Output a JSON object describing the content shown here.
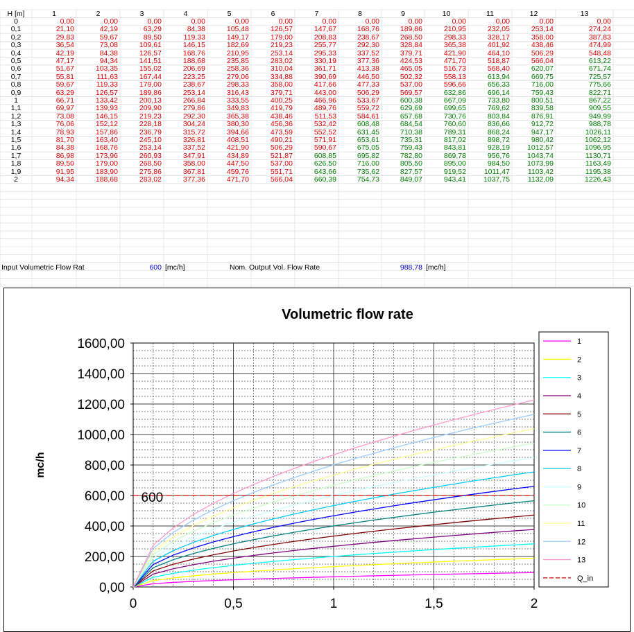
{
  "table": {
    "header_label": "H [m]",
    "columns": [
      "1",
      "2",
      "3",
      "4",
      "5",
      "6",
      "7",
      "8",
      "9",
      "10",
      "11",
      "12",
      "13"
    ],
    "rows": [
      {
        "h": "0",
        "values": [
          "0,00",
          "0,00",
          "0,00",
          "0,00",
          "0,00",
          "0,00",
          "0,00",
          "0,00",
          "0,00",
          "0,00",
          "0,00",
          "0,00",
          "0,00"
        ]
      },
      {
        "h": "0,1",
        "values": [
          "21,10",
          "42,19",
          "63,29",
          "84,38",
          "105,48",
          "126,57",
          "147,67",
          "168,76",
          "189,86",
          "210,95",
          "232,05",
          "253,14",
          "274,24"
        ]
      },
      {
        "h": "0,2",
        "values": [
          "29,83",
          "59,67",
          "89,50",
          "119,33",
          "149,17",
          "179,00",
          "208,83",
          "238,67",
          "268,50",
          "298,33",
          "328,17",
          "358,00",
          "387,83"
        ]
      },
      {
        "h": "0,3",
        "values": [
          "36,54",
          "73,08",
          "109,61",
          "146,15",
          "182,69",
          "219,23",
          "255,77",
          "292,30",
          "328,84",
          "365,38",
          "401,92",
          "438,46",
          "474,99"
        ]
      },
      {
        "h": "0,4",
        "values": [
          "42,19",
          "84,38",
          "126,57",
          "168,76",
          "210,95",
          "253,14",
          "295,33",
          "337,52",
          "379,71",
          "421,90",
          "464,10",
          "506,29",
          "548,48"
        ]
      },
      {
        "h": "0,5",
        "values": [
          "47,17",
          "94,34",
          "141,51",
          "188,68",
          "235,85",
          "283,02",
          "330,19",
          "377,36",
          "424,53",
          "471,70",
          "518,87",
          "566,04",
          "613,22"
        ]
      },
      {
        "h": "0,6",
        "values": [
          "51,67",
          "103,35",
          "155,02",
          "206,69",
          "258,36",
          "310,04",
          "361,71",
          "413,38",
          "465,05",
          "516,73",
          "568,40",
          "620,07",
          "671,74"
        ]
      },
      {
        "h": "0,7",
        "values": [
          "55,81",
          "111,63",
          "167,44",
          "223,25",
          "279,06",
          "334,88",
          "390,69",
          "446,50",
          "502,32",
          "558,13",
          "613,94",
          "669,75",
          "725,57"
        ]
      },
      {
        "h": "0,8",
        "values": [
          "59,67",
          "119,33",
          "179,00",
          "238,67",
          "298,33",
          "358,00",
          "417,66",
          "477,33",
          "537,00",
          "596,66",
          "656,33",
          "716,00",
          "775,66"
        ]
      },
      {
        "h": "0,9",
        "values": [
          "63,29",
          "126,57",
          "189,86",
          "253,14",
          "316,43",
          "379,71",
          "443,00",
          "506,29",
          "569,57",
          "632,86",
          "696,14",
          "759,43",
          "822,71"
        ]
      },
      {
        "h": "1",
        "values": [
          "66,71",
          "133,42",
          "200,13",
          "266,84",
          "333,55",
          "400,25",
          "466,96",
          "533,67",
          "600,38",
          "667,09",
          "733,80",
          "800,51",
          "867,22"
        ]
      },
      {
        "h": "1,1",
        "values": [
          "69,97",
          "139,93",
          "209,90",
          "279,86",
          "349,83",
          "419,79",
          "489,76",
          "559,72",
          "629,69",
          "699,65",
          "769,62",
          "839,58",
          "909,55"
        ]
      },
      {
        "h": "1,2",
        "values": [
          "73,08",
          "146,15",
          "219,23",
          "292,30",
          "365,38",
          "438,46",
          "511,53",
          "584,61",
          "657,68",
          "730,76",
          "803,84",
          "876,91",
          "949,99"
        ]
      },
      {
        "h": "1,3",
        "values": [
          "76,06",
          "152,12",
          "228,18",
          "304,24",
          "380,30",
          "456,36",
          "532,42",
          "608,48",
          "684,54",
          "760,60",
          "836,66",
          "912,72",
          "988,78"
        ]
      },
      {
        "h": "1,4",
        "values": [
          "78,93",
          "157,86",
          "236,79",
          "315,72",
          "394,66",
          "473,59",
          "552,52",
          "631,45",
          "710,38",
          "789,31",
          "868,24",
          "947,17",
          "1026,11"
        ]
      },
      {
        "h": "1,5",
        "values": [
          "81,70",
          "163,40",
          "245,10",
          "326,81",
          "408,51",
          "490,21",
          "571,91",
          "653,61",
          "735,31",
          "817,02",
          "898,72",
          "980,42",
          "1062,12"
        ]
      },
      {
        "h": "1,6",
        "values": [
          "84,38",
          "168,76",
          "253,14",
          "337,52",
          "421,90",
          "506,29",
          "590,67",
          "675,05",
          "759,43",
          "843,81",
          "928,19",
          "1012,57",
          "1096,95"
        ]
      },
      {
        "h": "1,7",
        "values": [
          "86,98",
          "173,96",
          "260,93",
          "347,91",
          "434,89",
          "521,87",
          "608,85",
          "695,82",
          "782,80",
          "869,78",
          "956,76",
          "1043,74",
          "1130,71"
        ]
      },
      {
        "h": "1,8",
        "values": [
          "89,50",
          "179,00",
          "268,50",
          "358,00",
          "447,50",
          "537,00",
          "626,50",
          "716,00",
          "805,50",
          "895,00",
          "984,50",
          "1073,99",
          "1163,49"
        ]
      },
      {
        "h": "1,9",
        "values": [
          "91,95",
          "183,90",
          "275,86",
          "367,81",
          "459,76",
          "551,71",
          "643,66",
          "735,62",
          "827,57",
          "919,52",
          "1011,47",
          "1103,42",
          "1195,38"
        ]
      },
      {
        "h": "2",
        "values": [
          "94,34",
          "188,68",
          "283,02",
          "377,36",
          "471,70",
          "566,04",
          "660,39",
          "754,73",
          "849,07",
          "943,41",
          "1037,75",
          "1132,09",
          "1226,43"
        ]
      }
    ]
  },
  "inputs": {
    "input_label": "Input Volumetric Flow Rat",
    "input_value": "600",
    "input_unit": "[mc/h]",
    "output_label": "Nom. Output Vol. Flow Rate",
    "output_value": "988,78",
    "output_unit": "[mc/h]"
  },
  "colors": {
    "red_text": "#e00000",
    "green_text": "#008000",
    "blue_text": "#0000e0"
  },
  "chart_data": {
    "type": "line",
    "title": "Volumetric flow rate",
    "xlabel": "",
    "ylabel": "mc/h",
    "xlim": [
      0,
      2
    ],
    "ylim": [
      0,
      1600
    ],
    "x_ticks": [
      "0",
      "0,5",
      "1",
      "1,5",
      "2"
    ],
    "y_ticks": [
      "0,00",
      "200,00",
      "400,00",
      "600,00",
      "800,00",
      "1000,00",
      "1200,00",
      "1400,00",
      "1600,00"
    ],
    "grid": true,
    "legend": "right",
    "annotation": "600",
    "q_in": 600,
    "x": [
      0,
      0.1,
      0.2,
      0.3,
      0.4,
      0.5,
      0.6,
      0.7,
      0.8,
      0.9,
      1,
      1.1,
      1.2,
      1.3,
      1.4,
      1.5,
      1.6,
      1.7,
      1.8,
      1.9,
      2
    ],
    "series": [
      {
        "name": "1",
        "color": "#ff00ff",
        "values": [
          0,
          21.1,
          29.83,
          36.54,
          42.19,
          47.17,
          51.67,
          55.81,
          59.67,
          63.29,
          66.71,
          69.97,
          73.08,
          76.06,
          78.93,
          81.7,
          84.38,
          86.98,
          89.5,
          91.95,
          94.34
        ]
      },
      {
        "name": "2",
        "color": "#ffff00",
        "values": [
          0,
          42.19,
          59.67,
          73.08,
          84.38,
          94.34,
          103.35,
          111.63,
          119.33,
          126.57,
          133.42,
          139.93,
          146.15,
          152.12,
          157.86,
          163.4,
          168.76,
          173.96,
          179.0,
          183.9,
          188.68
        ]
      },
      {
        "name": "3",
        "color": "#00ffff",
        "values": [
          0,
          63.29,
          89.5,
          109.61,
          126.57,
          141.51,
          155.02,
          167.44,
          179.0,
          189.86,
          200.13,
          209.9,
          219.23,
          228.18,
          236.79,
          245.1,
          253.14,
          260.93,
          268.5,
          275.86,
          283.02
        ]
      },
      {
        "name": "4",
        "color": "#800080",
        "values": [
          0,
          84.38,
          119.33,
          146.15,
          168.76,
          188.68,
          206.69,
          223.25,
          238.67,
          253.14,
          266.84,
          279.86,
          292.3,
          304.24,
          315.72,
          326.81,
          337.52,
          347.91,
          358.0,
          367.81,
          377.36
        ]
      },
      {
        "name": "5",
        "color": "#800000",
        "values": [
          0,
          105.48,
          149.17,
          182.69,
          210.95,
          235.85,
          258.36,
          279.06,
          298.33,
          316.43,
          333.55,
          349.83,
          365.38,
          380.3,
          394.66,
          408.51,
          421.9,
          434.89,
          447.5,
          459.76,
          471.7
        ]
      },
      {
        "name": "6",
        "color": "#008080",
        "values": [
          0,
          126.57,
          179.0,
          219.23,
          253.14,
          283.02,
          310.04,
          334.88,
          358.0,
          379.71,
          400.25,
          419.79,
          438.46,
          456.36,
          473.59,
          490.21,
          506.29,
          521.87,
          537.0,
          551.71,
          566.04
        ]
      },
      {
        "name": "7",
        "color": "#0000ff",
        "values": [
          0,
          147.67,
          208.83,
          255.77,
          295.33,
          330.19,
          361.71,
          390.69,
          417.66,
          443.0,
          466.96,
          489.76,
          511.53,
          532.42,
          552.52,
          571.91,
          590.67,
          608.85,
          626.5,
          643.66,
          660.39
        ]
      },
      {
        "name": "8",
        "color": "#00ccff",
        "values": [
          0,
          168.76,
          238.67,
          292.3,
          337.52,
          377.36,
          413.38,
          446.5,
          477.33,
          506.29,
          533.67,
          559.72,
          584.61,
          608.48,
          631.45,
          653.61,
          675.05,
          695.82,
          716.0,
          735.62,
          754.73
        ]
      },
      {
        "name": "9",
        "color": "#ccffff",
        "values": [
          0,
          189.86,
          268.5,
          328.84,
          379.71,
          424.53,
          465.05,
          502.32,
          537.0,
          569.57,
          600.38,
          629.69,
          657.68,
          684.54,
          710.38,
          735.31,
          759.43,
          782.8,
          805.5,
          827.57,
          849.07
        ]
      },
      {
        "name": "10",
        "color": "#ccffcc",
        "values": [
          0,
          210.95,
          298.33,
          365.38,
          421.9,
          471.7,
          516.73,
          558.13,
          596.66,
          632.86,
          667.09,
          699.65,
          730.76,
          760.6,
          789.31,
          817.02,
          843.81,
          869.78,
          895.0,
          919.52,
          943.41
        ]
      },
      {
        "name": "11",
        "color": "#ffff99",
        "values": [
          0,
          232.05,
          328.17,
          401.92,
          464.1,
          518.87,
          568.4,
          613.94,
          656.33,
          696.14,
          733.8,
          769.62,
          803.84,
          836.66,
          868.24,
          898.72,
          928.19,
          956.76,
          984.5,
          1011.47,
          1037.75
        ]
      },
      {
        "name": "12",
        "color": "#99ccff",
        "values": [
          0,
          253.14,
          358.0,
          438.46,
          506.29,
          566.04,
          620.07,
          669.75,
          716.0,
          759.43,
          800.51,
          839.58,
          876.91,
          912.72,
          947.17,
          980.42,
          1012.57,
          1043.74,
          1073.99,
          1103.42,
          1132.09
        ]
      },
      {
        "name": "13",
        "color": "#ff99cc",
        "values": [
          0,
          274.24,
          387.83,
          474.99,
          548.48,
          613.22,
          671.74,
          725.57,
          775.66,
          822.71,
          867.22,
          909.55,
          949.99,
          988.78,
          1026.11,
          1062.12,
          1096.95,
          1130.71,
          1163.49,
          1195.38,
          1226.43
        ]
      },
      {
        "name": "Q_in",
        "color": "#e00000",
        "dashed": true,
        "values": [
          600,
          600,
          600,
          600,
          600,
          600,
          600,
          600,
          600,
          600,
          600,
          600,
          600,
          600,
          600,
          600,
          600,
          600,
          600,
          600,
          600
        ]
      }
    ]
  }
}
